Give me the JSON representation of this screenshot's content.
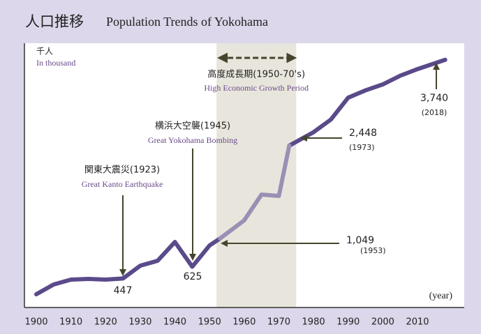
{
  "title_ja": "人口推移",
  "title_en": "Population Trends of Yokohama",
  "chart_data": {
    "type": "line",
    "unit_ja": "千人",
    "unit_en": "In thousand",
    "xlabel": "(year)",
    "x": [
      1900,
      1905,
      1910,
      1915,
      1920,
      1925,
      1930,
      1935,
      1940,
      1945,
      1950,
      1953,
      1960,
      1965,
      1970,
      1973,
      1980,
      1985,
      1990,
      1995,
      2000,
      2005,
      2010,
      2018
    ],
    "series": [
      {
        "color": "#5b4a8a",
        "values": [
          210,
          357,
          430,
          441,
          430,
          447,
          640,
          714,
          997,
          625,
          945,
          1049,
          null,
          null,
          null,
          2448,
          2650,
          2840,
          3170,
          3280,
          3370,
          3500,
          3600,
          3740
        ]
      },
      {
        "color": "#9b8fb5",
        "values": [
          null,
          null,
          null,
          null,
          null,
          null,
          null,
          null,
          null,
          null,
          null,
          1049,
          1323,
          1711,
          1690,
          2448,
          null,
          null,
          null,
          null,
          null,
          null,
          null,
          null
        ]
      }
    ],
    "xlim": [
      1900,
      2010
    ],
    "ylim": [
      0,
      4000
    ],
    "xticks": [
      1900,
      1910,
      1920,
      1930,
      1940,
      1950,
      1960,
      1970,
      1980,
      1990,
      2000,
      2010
    ],
    "band": {
      "from": 1952,
      "to": 1975,
      "color": "#e8e6dc",
      "label_ja": "高度成長期(1950-70's)",
      "label_en": "High Economic Growth Period"
    },
    "events": [
      {
        "label_ja": "関東大震災(1923)",
        "label_en": "Great Kanto Earthquake"
      },
      {
        "label_ja": "横浜大空襲(1945)",
        "label_en": "Great Yokohama Bombing"
      }
    ],
    "annotations": [
      {
        "x": 1925,
        "value": 447,
        "label": "447"
      },
      {
        "x": 1945,
        "value": 625,
        "label": "625"
      },
      {
        "x": 1953,
        "value": 1049,
        "label": "1,049",
        "sub": "(1953)"
      },
      {
        "x": 1973,
        "value": 2448,
        "label": "2,448",
        "sub": "(1973)"
      },
      {
        "x": 2018,
        "value": 3740,
        "label": "3,740",
        "sub": "(2018)"
      }
    ]
  }
}
